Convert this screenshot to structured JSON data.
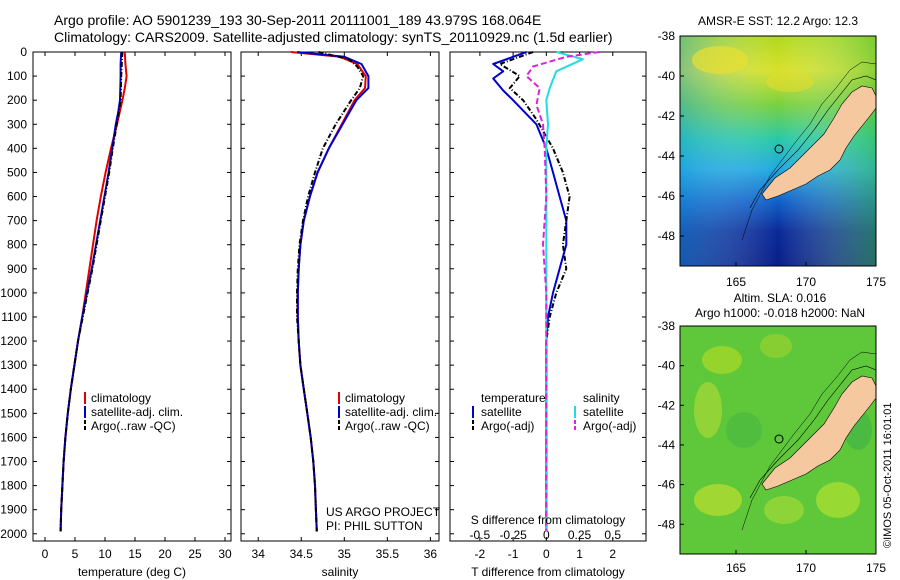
{
  "figure": {
    "title_line1": "Argo profile: AO 5901239_193 30-Sep-2011 20111001_189 43.979S 168.064E",
    "title_line2": "Climatology: CARS2009. Satellite-adjusted climatology: synTS_20110929.nc (1.5d earlier)",
    "credit_line1": "US ARGO PROJECT",
    "credit_line2": "PI: PHIL SUTTON",
    "stamp": "©IMOS 05-Oct-2011 16:01:01"
  },
  "colors": {
    "climatology": "#e00000",
    "satellite": "#0000d0",
    "argo": "#000000",
    "sal_satellite": "#22dddd",
    "sal_argo": "#dd22dd",
    "land": "#f5c8a0"
  },
  "chart_data": [
    {
      "type": "line",
      "id": "temperature",
      "xlabel": "temperature (deg C)",
      "xlim": [
        -2,
        31
      ],
      "ylim": [
        2030,
        0
      ],
      "xticks": [
        0,
        5,
        10,
        15,
        20,
        25,
        30
      ],
      "yticks": [
        0,
        100,
        200,
        300,
        400,
        500,
        600,
        700,
        800,
        900,
        1000,
        1100,
        1200,
        1300,
        1400,
        1500,
        1600,
        1700,
        1800,
        1900,
        2000
      ],
      "legend": [
        "climatology",
        "satellite-adj. clim.",
        "Argo(..raw -QC)"
      ],
      "series": [
        {
          "name": "climatology",
          "color_key": "climatology",
          "dash": "",
          "points": [
            [
              13.3,
              0
            ],
            [
              13.4,
              50
            ],
            [
              13.6,
              100
            ],
            [
              13.3,
              150
            ],
            [
              12.9,
              200
            ],
            [
              12.0,
              300
            ],
            [
              11.0,
              400
            ],
            [
              10.1,
              500
            ],
            [
              9.3,
              600
            ],
            [
              8.6,
              700
            ],
            [
              8.0,
              800
            ],
            [
              7.4,
              900
            ],
            [
              6.8,
              1000
            ],
            [
              6.2,
              1100
            ],
            [
              5.5,
              1200
            ],
            [
              4.9,
              1300
            ],
            [
              4.3,
              1400
            ],
            [
              3.8,
              1500
            ],
            [
              3.4,
              1600
            ],
            [
              3.1,
              1700
            ],
            [
              2.9,
              1800
            ],
            [
              2.7,
              1900
            ],
            [
              2.6,
              1990
            ]
          ]
        },
        {
          "name": "satellite-adj. clim.",
          "color_key": "satellite",
          "dash": "",
          "points": [
            [
              12.7,
              0
            ],
            [
              12.6,
              50
            ],
            [
              12.6,
              100
            ],
            [
              12.5,
              200
            ],
            [
              12.2,
              250
            ],
            [
              11.8,
              300
            ],
            [
              11.2,
              400
            ],
            [
              10.6,
              500
            ],
            [
              9.9,
              600
            ],
            [
              9.2,
              700
            ],
            [
              8.5,
              800
            ],
            [
              7.8,
              900
            ],
            [
              7.0,
              1000
            ],
            [
              6.2,
              1100
            ],
            [
              5.5,
              1200
            ],
            [
              4.9,
              1300
            ],
            [
              4.3,
              1400
            ],
            [
              3.8,
              1500
            ],
            [
              3.4,
              1600
            ],
            [
              3.1,
              1700
            ],
            [
              2.9,
              1800
            ],
            [
              2.7,
              1900
            ],
            [
              2.6,
              1990
            ]
          ]
        },
        {
          "name": "Argo(..raw -QC)",
          "color_key": "argo",
          "dash": "5,2,1,2",
          "points": [
            [
              12.9,
              0
            ],
            [
              12.8,
              50
            ],
            [
              12.7,
              100
            ],
            [
              12.6,
              200
            ],
            [
              12.1,
              280
            ],
            [
              11.3,
              400
            ],
            [
              10.7,
              500
            ],
            [
              10.0,
              600
            ],
            [
              9.3,
              700
            ],
            [
              8.6,
              800
            ],
            [
              7.9,
              900
            ],
            [
              7.1,
              1000
            ],
            [
              6.3,
              1100
            ],
            [
              5.5,
              1200
            ],
            [
              4.9,
              1300
            ],
            [
              4.3,
              1400
            ],
            [
              3.8,
              1500
            ],
            [
              3.4,
              1600
            ],
            [
              3.1,
              1700
            ],
            [
              2.9,
              1800
            ],
            [
              2.7,
              1900
            ],
            [
              2.6,
              1990
            ]
          ]
        }
      ]
    },
    {
      "type": "line",
      "id": "salinity",
      "xlabel": "salinity",
      "xlim": [
        33.8,
        36.1
      ],
      "ylim": [
        2030,
        0
      ],
      "xticks": [
        34,
        34.5,
        35,
        35.5,
        36
      ],
      "xticklabels": [
        "34",
        "34.5",
        "35",
        "35.5",
        "36"
      ],
      "legend": [
        "climatology",
        "satellite-adj. clim.",
        "Argo(..raw -QC)"
      ],
      "series": [
        {
          "name": "climatology",
          "color_key": "climatology",
          "dash": "",
          "points": [
            [
              34.38,
              0
            ],
            [
              34.95,
              20
            ],
            [
              35.15,
              50
            ],
            [
              35.25,
              100
            ],
            [
              35.24,
              150
            ],
            [
              35.12,
              200
            ],
            [
              34.97,
              300
            ],
            [
              34.82,
              400
            ],
            [
              34.69,
              500
            ],
            [
              34.6,
              600
            ],
            [
              34.53,
              700
            ],
            [
              34.49,
              800
            ],
            [
              34.47,
              900
            ],
            [
              34.46,
              1000
            ],
            [
              34.46,
              1100
            ],
            [
              34.47,
              1200
            ],
            [
              34.49,
              1300
            ],
            [
              34.53,
              1400
            ],
            [
              34.57,
              1500
            ],
            [
              34.61,
              1600
            ],
            [
              34.64,
              1700
            ],
            [
              34.66,
              1800
            ],
            [
              34.67,
              1900
            ],
            [
              34.68,
              1990
            ]
          ]
        },
        {
          "name": "satellite-adj. clim.",
          "color_key": "satellite",
          "dash": "",
          "points": [
            [
              34.45,
              0
            ],
            [
              35.0,
              20
            ],
            [
              35.2,
              50
            ],
            [
              35.28,
              100
            ],
            [
              35.28,
              150
            ],
            [
              35.14,
              200
            ],
            [
              34.98,
              300
            ],
            [
              34.82,
              400
            ],
            [
              34.69,
              500
            ],
            [
              34.6,
              600
            ],
            [
              34.53,
              700
            ],
            [
              34.49,
              800
            ],
            [
              34.47,
              900
            ],
            [
              34.46,
              1000
            ],
            [
              34.46,
              1100
            ],
            [
              34.47,
              1200
            ],
            [
              34.49,
              1300
            ],
            [
              34.53,
              1400
            ],
            [
              34.57,
              1500
            ],
            [
              34.61,
              1600
            ],
            [
              34.64,
              1700
            ],
            [
              34.66,
              1800
            ],
            [
              34.67,
              1900
            ],
            [
              34.68,
              1990
            ]
          ]
        },
        {
          "name": "Argo(..raw -QC)",
          "color_key": "argo",
          "dash": "5,2,1,2",
          "points": [
            [
              34.7,
              0
            ],
            [
              35.05,
              30
            ],
            [
              35.15,
              60
            ],
            [
              35.22,
              100
            ],
            [
              35.18,
              150
            ],
            [
              35.08,
              200
            ],
            [
              34.9,
              300
            ],
            [
              34.75,
              400
            ],
            [
              34.66,
              500
            ],
            [
              34.58,
              600
            ],
            [
              34.52,
              700
            ],
            [
              34.48,
              800
            ],
            [
              34.46,
              900
            ],
            [
              34.45,
              1000
            ],
            [
              34.45,
              1100
            ],
            [
              34.47,
              1200
            ],
            [
              34.49,
              1300
            ],
            [
              34.53,
              1400
            ],
            [
              34.57,
              1500
            ],
            [
              34.61,
              1600
            ],
            [
              34.64,
              1700
            ],
            [
              34.66,
              1800
            ],
            [
              34.67,
              1900
            ],
            [
              34.68,
              1990
            ]
          ]
        }
      ]
    },
    {
      "type": "line",
      "id": "difference",
      "xlabel": "T difference from climatology",
      "top_label": "S difference from climatology",
      "xlim": [
        -2.9,
        3.0
      ],
      "ylim": [
        2030,
        0
      ],
      "xticks": [
        -2,
        -1,
        0,
        1,
        2
      ],
      "top_ticks": [
        -0.5,
        -0.25,
        0,
        0.25,
        0.5
      ],
      "top_ticklabels": [
        "-0.5",
        "-0.25",
        "0",
        "0.25",
        "0.5"
      ],
      "legend_headers": [
        "temperature",
        "salinity"
      ],
      "legend_left": [
        "satellite",
        "Argo(-adj)"
      ],
      "legend_right": [
        "satellite",
        "Argo(-adj)"
      ],
      "series": [
        {
          "name": "T satellite",
          "color_key": "satellite",
          "dash": "",
          "points": [
            [
              -0.6,
              0
            ],
            [
              -1.6,
              50
            ],
            [
              -1.3,
              80
            ],
            [
              -1.6,
              110
            ],
            [
              -1.3,
              160
            ],
            [
              -1.0,
              200
            ],
            [
              -0.3,
              300
            ],
            [
              0.0,
              400
            ],
            [
              0.2,
              500
            ],
            [
              0.4,
              600
            ],
            [
              0.6,
              700
            ],
            [
              0.6,
              800
            ],
            [
              0.4,
              900
            ],
            [
              0.2,
              1000
            ],
            [
              0.05,
              1100
            ],
            [
              0.0,
              1200
            ],
            [
              0.0,
              1400
            ],
            [
              0.0,
              1990
            ]
          ]
        },
        {
          "name": "T Argo",
          "color_key": "argo",
          "dash": "5,2,1,2",
          "points": [
            [
              -0.4,
              0
            ],
            [
              -1.4,
              50
            ],
            [
              -0.8,
              100
            ],
            [
              -1.1,
              150
            ],
            [
              -0.7,
              200
            ],
            [
              -0.3,
              280
            ],
            [
              0.2,
              400
            ],
            [
              0.5,
              500
            ],
            [
              0.7,
              600
            ],
            [
              0.6,
              700
            ],
            [
              0.5,
              800
            ],
            [
              0.6,
              900
            ],
            [
              0.3,
              1000
            ],
            [
              0.1,
              1100
            ],
            [
              0.0,
              1200
            ],
            [
              0.0,
              1990
            ]
          ]
        },
        {
          "name": "S satellite",
          "color_key": "sal_satellite",
          "dash": "",
          "points": [
            [
              0.3,
              0
            ],
            [
              1.1,
              30
            ],
            [
              0.3,
              80
            ],
            [
              0.1,
              150
            ],
            [
              0.0,
              200
            ],
            [
              0.05,
              300
            ],
            [
              0.0,
              400
            ],
            [
              0.0,
              600
            ],
            [
              0.0,
              1990
            ]
          ]
        },
        {
          "name": "S Argo",
          "color_key": "sal_argo",
          "dash": "6,3",
          "points": [
            [
              1.6,
              0
            ],
            [
              0.6,
              20
            ],
            [
              -0.4,
              60
            ],
            [
              -0.6,
              100
            ],
            [
              -0.2,
              150
            ],
            [
              -0.3,
              220
            ],
            [
              -0.1,
              300
            ],
            [
              -0.05,
              400
            ],
            [
              0.0,
              600
            ],
            [
              -0.1,
              800
            ],
            [
              0.0,
              1000
            ],
            [
              0.0,
              1990
            ]
          ]
        }
      ]
    },
    {
      "type": "heatmap",
      "id": "sst_map",
      "title": "AMSR-E SST: 12.2 Argo: 12.3",
      "xlim": [
        161,
        175
      ],
      "ylim": [
        -49.5,
        -38
      ],
      "xticks": [
        165,
        170,
        175
      ],
      "yticks": [
        -38,
        -40,
        -42,
        -44,
        -46,
        -48
      ],
      "argo_position": [
        168.064,
        -43.979
      ]
    },
    {
      "type": "heatmap",
      "id": "sla_map",
      "title_line1": "Altim. SLA: 0.016",
      "title_line2": "Argo h1000: -0.018 h2000: NaN",
      "xlim": [
        161,
        175
      ],
      "ylim": [
        -49.5,
        -38
      ],
      "xticks": [
        165,
        170,
        175
      ],
      "yticks": [
        -38,
        -40,
        -42,
        -44,
        -46,
        -48
      ],
      "argo_position": [
        168.064,
        -43.979
      ]
    }
  ]
}
